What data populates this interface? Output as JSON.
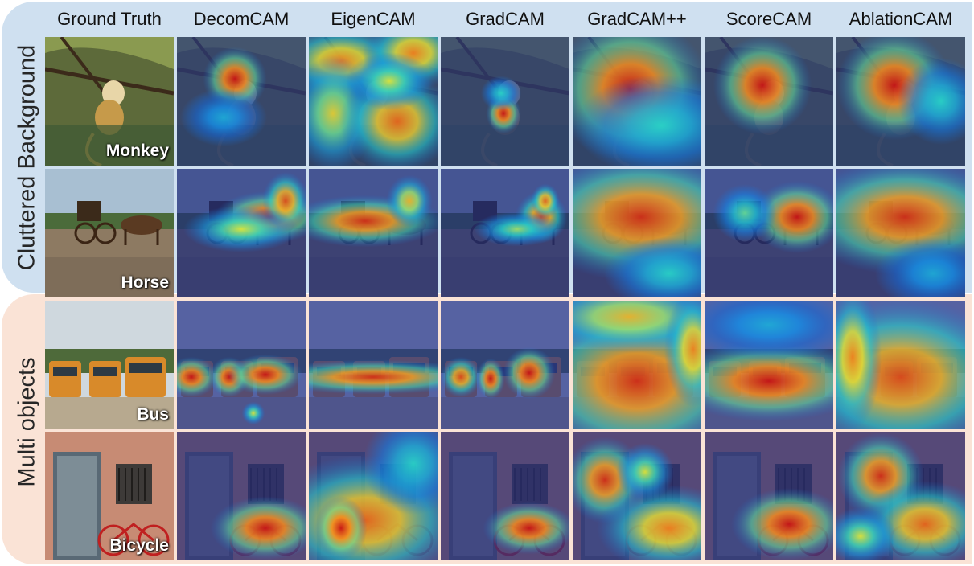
{
  "groups": [
    {
      "label": "Cluttered Background",
      "color": "#cfe0f0"
    },
    {
      "label": "Multi objects",
      "color": "#fae3d6"
    }
  ],
  "columns": [
    "Ground Truth",
    "DecomCAM",
    "EigenCAM",
    "GradCAM",
    "GradCAM++",
    "ScoreCAM",
    "AblationCAM"
  ],
  "rows": [
    {
      "label": "Monkey",
      "group": "Cluttered Background"
    },
    {
      "label": "Horse",
      "group": "Cluttered Background"
    },
    {
      "label": "Bus",
      "group": "Multi objects"
    },
    {
      "label": "Bicycle",
      "group": "Multi objects"
    }
  ]
}
